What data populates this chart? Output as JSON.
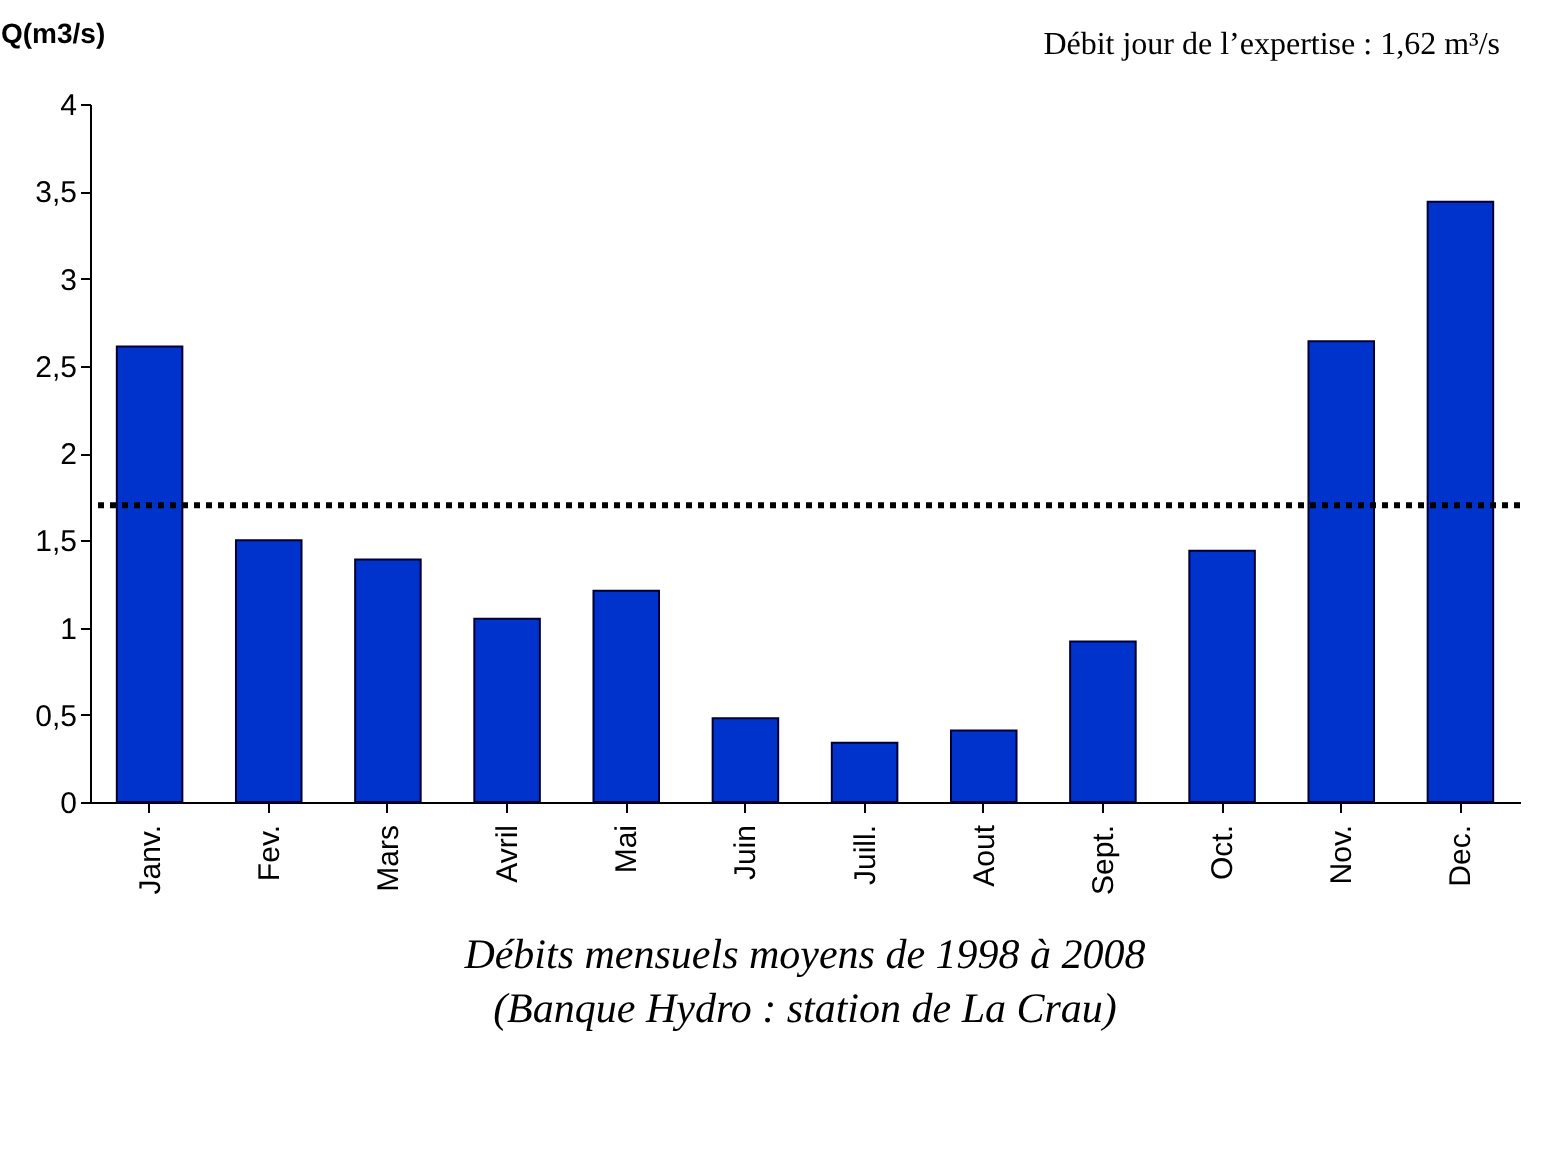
{
  "chart_data": {
    "type": "bar",
    "title": "Débits mensuels moyens de 1998 à 2008",
    "subtitle": "(Banque Hydro : station de La Crau)",
    "ylabel": "Q(m3/s)",
    "annotations": [
      "Débit jour de l’expertise : 1,62 m³/s"
    ],
    "categories": [
      "Janv.",
      "Fev.",
      "Mars",
      "Avril",
      "Mai",
      "Juin",
      "Juill.",
      "Aout",
      "Sept.",
      "Oct.",
      "Nov.",
      "Dec."
    ],
    "values": [
      2.61,
      1.5,
      1.39,
      1.05,
      1.21,
      0.48,
      0.34,
      0.41,
      0.92,
      1.44,
      2.64,
      3.44
    ],
    "color": "#0033cc",
    "ylim": [
      0,
      4
    ],
    "yticks": [
      {
        "value": 0,
        "label": "0"
      },
      {
        "value": 0.5,
        "label": "0,5"
      },
      {
        "value": 1,
        "label": "1"
      },
      {
        "value": 1.5,
        "label": "1,5"
      },
      {
        "value": 2,
        "label": "2"
      },
      {
        "value": 2.5,
        "label": "2,5"
      },
      {
        "value": 3,
        "label": "3"
      },
      {
        "value": 3.5,
        "label": "3,5"
      },
      {
        "value": 4,
        "label": "4"
      }
    ],
    "grid": false,
    "ref_lines": [
      {
        "axis": "y",
        "value": 1.7,
        "color": "#000000",
        "line_style": "dotted"
      }
    ]
  }
}
